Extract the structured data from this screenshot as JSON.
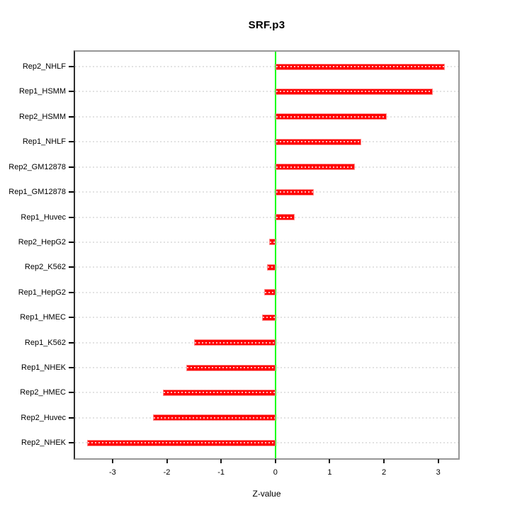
{
  "title": "SRF.p3",
  "axis": {
    "xlabel": "Z-value"
  },
  "colors": {
    "bar_fill": "#ff0000",
    "bar_edge": "#ff9090",
    "zero_line": "#00ff00",
    "gridline": "#e2e2e2",
    "frame": "#979797",
    "background": "#ffffff"
  },
  "chart_data": {
    "type": "bar",
    "orientation": "horizontal",
    "title": "SRF.p3",
    "xlabel": "Z-value",
    "ylabel": "",
    "categories": [
      "Rep2_NHLF",
      "Rep1_HSMM",
      "Rep2_HSMM",
      "Rep1_NHLF",
      "Rep2_GM12878",
      "Rep1_GM12878",
      "Rep1_Huvec",
      "Rep2_HepG2",
      "Rep2_K562",
      "Rep1_HepG2",
      "Rep1_HMEC",
      "Rep1_K562",
      "Rep1_NHEK",
      "Rep2_HMEC",
      "Rep2_Huvec",
      "Rep2_NHEK"
    ],
    "values": [
      3.12,
      2.9,
      2.05,
      1.58,
      1.47,
      0.71,
      0.36,
      -0.12,
      -0.15,
      -0.2,
      -0.24,
      -1.5,
      -1.64,
      -2.07,
      -2.25,
      -3.47
    ],
    "x_ticks": [
      -3,
      -2,
      -1,
      0,
      1,
      2,
      3
    ],
    "xlim": [
      -3.69,
      3.37
    ],
    "bar_color": "red",
    "zero_line": 0,
    "grid": "dotted horizontal gridline per category",
    "legend_position": "none"
  }
}
